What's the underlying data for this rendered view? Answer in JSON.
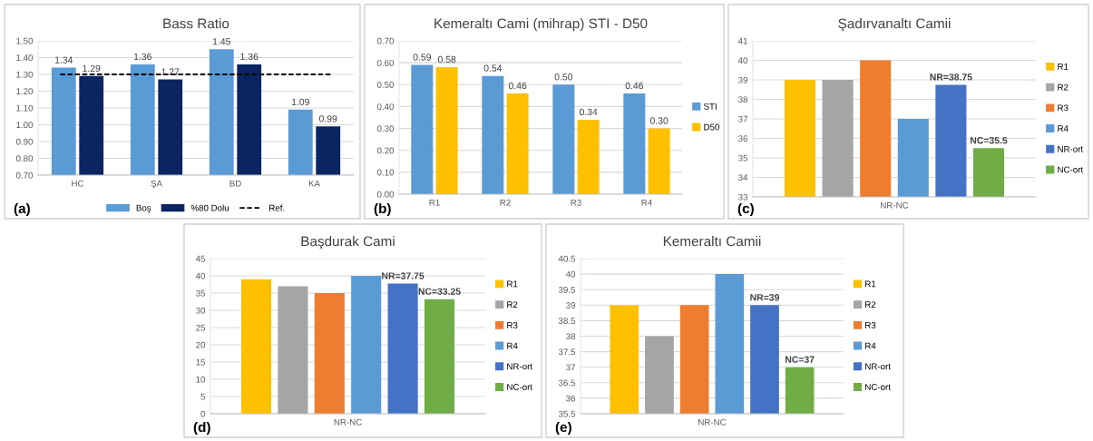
{
  "chart_data": [
    {
      "type": "bar",
      "title": "Bass Ratio",
      "categories": [
        "HC",
        "ŞA",
        "BD",
        "KA"
      ],
      "series": [
        {
          "name": "Boş",
          "color": "#5b9bd5",
          "values": [
            1.34,
            1.36,
            1.45,
            1.09
          ],
          "value_labels": [
            "1.34",
            "1.36",
            "1.45",
            "1.09"
          ]
        },
        {
          "name": "%80 Dolu",
          "color": "#0b2462",
          "values": [
            1.29,
            1.27,
            1.36,
            0.99
          ],
          "value_labels": [
            "1.29",
            "1.27",
            "1.36",
            "0.99"
          ]
        }
      ],
      "ylim": [
        0.7,
        1.5
      ],
      "yticks": [
        {
          "value": 0.7,
          "label": "0.70"
        },
        {
          "value": 0.8,
          "label": "0.80"
        },
        {
          "value": 0.9,
          "label": "0.90"
        },
        {
          "value": 1.0,
          "label": "1.00"
        },
        {
          "value": 1.1,
          "label": "1.10"
        },
        {
          "value": 1.2,
          "label": "1.20"
        },
        {
          "value": 1.3,
          "label": "1.30"
        },
        {
          "value": 1.4,
          "label": "1.40"
        },
        {
          "value": 1.5,
          "label": "1.50"
        }
      ],
      "ref_lines": [
        {
          "axis": "y",
          "value": 1.3,
          "label": "Ref.",
          "color": "#000000",
          "line_style": "dashed"
        }
      ],
      "grid": "y",
      "legend": "bottom",
      "annotations": [
        "(a)"
      ]
    },
    {
      "type": "bar",
      "title": "Kemeraltı Cami (mihrap) STI - D50",
      "categories": [
        "R1",
        "R2",
        "R3",
        "R4"
      ],
      "series": [
        {
          "name": "STI",
          "color": "#5b9bd5",
          "values": [
            0.59,
            0.54,
            0.5,
            0.46
          ],
          "value_labels": [
            "0.59",
            "0.54",
            "0.50",
            "0.46"
          ]
        },
        {
          "name": "D50",
          "color": "#ffc000",
          "values": [
            0.58,
            0.46,
            0.34,
            0.3
          ],
          "value_labels": [
            "0.58",
            "0.46",
            "0.34",
            "0.30"
          ]
        }
      ],
      "ylim": [
        0,
        0.7
      ],
      "yticks": [
        {
          "value": 0,
          "label": "0.00"
        },
        {
          "value": 0.1,
          "label": "0.10"
        },
        {
          "value": 0.2,
          "label": "0.20"
        },
        {
          "value": 0.3,
          "label": "0.30"
        },
        {
          "value": 0.4,
          "label": "0.40"
        },
        {
          "value": 0.5,
          "label": "0.50"
        },
        {
          "value": 0.6,
          "label": "0.60"
        },
        {
          "value": 0.7,
          "label": "0.70"
        }
      ],
      "grid": "y",
      "legend": "right",
      "annotations": [
        "(b)"
      ]
    },
    {
      "type": "bar",
      "title": "Şadırvanaltı Camii",
      "categories": [
        "NR-NC"
      ],
      "series": [
        {
          "name": "R1",
          "color": "#ffc000",
          "values": [
            39
          ]
        },
        {
          "name": "R2",
          "color": "#a5a5a5",
          "values": [
            39
          ]
        },
        {
          "name": "R3",
          "color": "#ed7d31",
          "values": [
            40
          ]
        },
        {
          "name": "R4",
          "color": "#5b9bd5",
          "values": [
            37
          ]
        },
        {
          "name": "NR-ort",
          "color": "#4472c4",
          "values": [
            38.75
          ],
          "value_labels": [
            "NR=38.75"
          ]
        },
        {
          "name": "NC-ort",
          "color": "#70ad47",
          "values": [
            35.5
          ],
          "value_labels": [
            "NC=35.5"
          ]
        }
      ],
      "ylim": [
        33,
        41
      ],
      "yticks": [
        33,
        34,
        35,
        36,
        37,
        38,
        39,
        40,
        41
      ],
      "grid": "y",
      "legend": "right",
      "annotations": [
        "(c)"
      ]
    },
    {
      "type": "bar",
      "title": "Başdurak Cami",
      "categories": [
        "NR-NC"
      ],
      "series": [
        {
          "name": "R1",
          "color": "#ffc000",
          "values": [
            39
          ]
        },
        {
          "name": "R2",
          "color": "#a5a5a5",
          "values": [
            37
          ]
        },
        {
          "name": "R3",
          "color": "#ed7d31",
          "values": [
            35
          ]
        },
        {
          "name": "R4",
          "color": "#5b9bd5",
          "values": [
            40
          ]
        },
        {
          "name": "NR-ort",
          "color": "#4472c4",
          "values": [
            37.75
          ],
          "value_labels": [
            "NR=37.75"
          ]
        },
        {
          "name": "NC-ort",
          "color": "#70ad47",
          "values": [
            33.25
          ],
          "value_labels": [
            "NC=33.25"
          ]
        }
      ],
      "ylim": [
        0,
        45
      ],
      "yticks": [
        0,
        5,
        10,
        15,
        20,
        25,
        30,
        35,
        40,
        45
      ],
      "grid": "y",
      "legend": "right",
      "annotations": [
        "(d)"
      ]
    },
    {
      "type": "bar",
      "title": "Kemeraltı Camii",
      "categories": [
        "NR-NC"
      ],
      "series": [
        {
          "name": "R1",
          "color": "#ffc000",
          "values": [
            39
          ]
        },
        {
          "name": "R2",
          "color": "#a5a5a5",
          "values": [
            38
          ]
        },
        {
          "name": "R3",
          "color": "#ed7d31",
          "values": [
            39
          ]
        },
        {
          "name": "R4",
          "color": "#5b9bd5",
          "values": [
            40
          ]
        },
        {
          "name": "NR-ort",
          "color": "#4472c4",
          "values": [
            39
          ],
          "value_labels": [
            "NR=39"
          ]
        },
        {
          "name": "NC-ort",
          "color": "#70ad47",
          "values": [
            37
          ],
          "value_labels": [
            "NC=37"
          ]
        }
      ],
      "ylim": [
        35.5,
        40.5
      ],
      "yticks": [
        35.5,
        36,
        36.5,
        37,
        37.5,
        38,
        38.5,
        39,
        39.5,
        40,
        40.5
      ],
      "grid": "y",
      "legend": "right",
      "annotations": [
        "(e)"
      ]
    }
  ]
}
